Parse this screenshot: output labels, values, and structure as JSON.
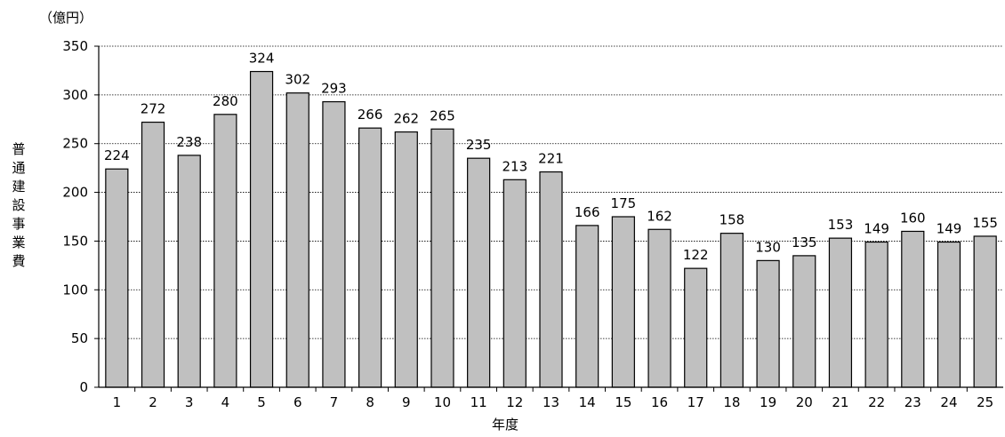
{
  "chart_data": {
    "type": "bar",
    "unit_label": "（億円）",
    "ylabel": "普通建設事業費",
    "xlabel": "年度",
    "ylim": [
      0,
      350
    ],
    "y_ticks": [
      0,
      50,
      100,
      150,
      200,
      250,
      300,
      350
    ],
    "grid": true,
    "bar_color": "#c0c0c0",
    "categories": [
      "1",
      "2",
      "3",
      "4",
      "5",
      "6",
      "7",
      "8",
      "9",
      "10",
      "11",
      "12",
      "13",
      "14",
      "15",
      "16",
      "17",
      "18",
      "19",
      "20",
      "21",
      "22",
      "23",
      "24",
      "25"
    ],
    "values": [
      224,
      272,
      238,
      280,
      324,
      302,
      293,
      266,
      262,
      265,
      235,
      213,
      221,
      166,
      175,
      162,
      122,
      158,
      130,
      135,
      153,
      149,
      160,
      149,
      155
    ]
  }
}
